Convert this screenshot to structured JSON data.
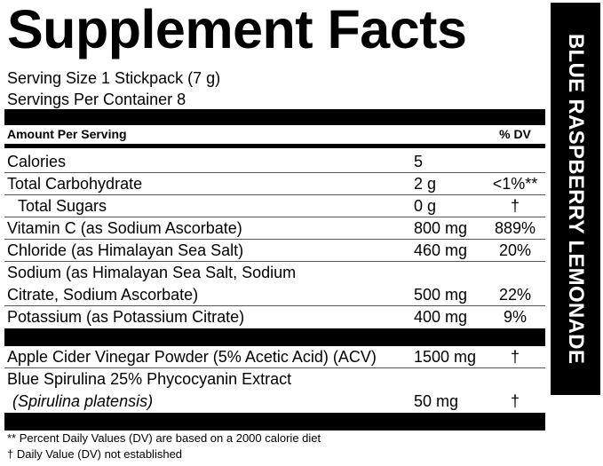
{
  "header": {
    "title": "Supplement Facts",
    "serving_size": "Serving Size 1 Stickpack (7 g)",
    "servings_per_container": "Servings Per Container 8"
  },
  "table": {
    "header": {
      "amount": "Amount Per Serving",
      "dv": "% DV"
    },
    "rows": [
      {
        "name": [
          "Calories"
        ],
        "amount": "5",
        "dv": ""
      },
      {
        "name": [
          "Total Carbohydrate"
        ],
        "amount": "2 g",
        "dv": "<1%**"
      },
      {
        "name": [
          "Total Sugars"
        ],
        "amount": "0 g",
        "dv": "†"
      },
      {
        "name": [
          "Vitamin C (as Sodium Ascorbate)"
        ],
        "amount": "800 mg",
        "dv": "889%"
      },
      {
        "name": [
          "Chloride (as Himalayan Sea Salt)"
        ],
        "amount": "460 mg",
        "dv": "20%"
      },
      {
        "name": [
          "Sodium (as Himalayan Sea Salt, Sodium",
          "Citrate, Sodium Ascorbate)"
        ],
        "amount": "500 mg",
        "dv": "22%"
      },
      {
        "name": [
          "Potassium (as Potassium Citrate)"
        ],
        "amount": "400 mg",
        "dv": "9%"
      }
    ],
    "rows2": [
      {
        "name": [
          "Apple Cider Vinegar Powder (5% Acetic Acid) (ACV)"
        ],
        "amount": "1500 mg",
        "dv": "†"
      },
      {
        "name": [
          "Blue Spirulina 25% Phycocyanin Extract",
          "(Spirulina platensis)"
        ],
        "amount": "50 mg",
        "dv": "†"
      }
    ]
  },
  "footnotes": [
    "** Percent Daily Values (DV) are based on a 2000 calorie diet",
    "† Daily Value (DV) not established"
  ],
  "side_label": "BLUE RASPBERRY LEMONADE"
}
